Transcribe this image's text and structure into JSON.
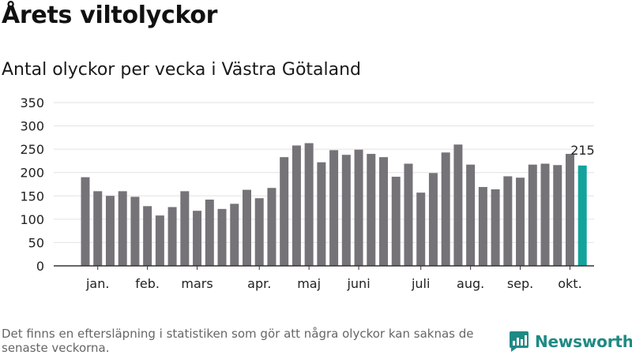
{
  "chart_data": {
    "type": "bar",
    "title": "Årets viltolyckor",
    "subtitle": "Antal olyckor per vecka i Västra Götaland",
    "ylim": [
      0,
      350
    ],
    "yticks": [
      0,
      50,
      100,
      150,
      200,
      250,
      300,
      350
    ],
    "grid": true,
    "values": [
      190,
      160,
      150,
      160,
      148,
      128,
      108,
      126,
      160,
      118,
      142,
      122,
      133,
      163,
      145,
      167,
      233,
      258,
      263,
      222,
      248,
      238,
      249,
      240,
      233,
      191,
      219,
      157,
      199,
      243,
      260,
      217,
      169,
      164,
      192,
      189,
      217,
      219,
      216,
      240,
      215
    ],
    "month_labels": [
      {
        "label": "jan.",
        "index": 1
      },
      {
        "label": "feb.",
        "index": 5
      },
      {
        "label": "mars",
        "index": 9
      },
      {
        "label": "apr.",
        "index": 14
      },
      {
        "label": "maj",
        "index": 18
      },
      {
        "label": "juni",
        "index": 22
      },
      {
        "label": "juli",
        "index": 27
      },
      {
        "label": "aug.",
        "index": 31
      },
      {
        "label": "sep.",
        "index": 35
      },
      {
        "label": "okt.",
        "index": 39
      }
    ],
    "highlight_index": 40,
    "highlight_label": "215",
    "colors": {
      "bar": "#757378",
      "highlight": "#12a39b",
      "grid": "#e2e2e2",
      "axis": "#333333"
    }
  },
  "footnote": "Det finns en eftersläpning i statistiken som gör att några olyckor kan saknas de senaste veckorna.",
  "brand": {
    "name": "Newsworthy",
    "icon": "newsworthy-chart-icon",
    "color": "#1f8a84"
  }
}
